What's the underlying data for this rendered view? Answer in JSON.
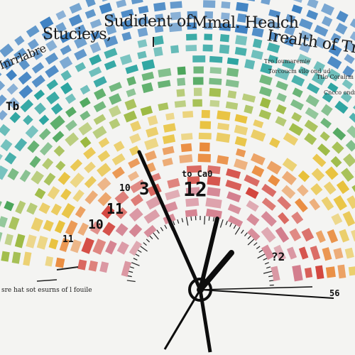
{
  "title": {
    "left": "Stucieys,",
    "middle": "Sudident of",
    "right": "Mmal. Healch",
    "right2": "Irealth of Treac",
    "curved_left": "Inrrlabre"
  },
  "labels": {
    "right_top1": "Tro loumaremie",
    "right_top2": "Torcoucm vilo ond ud",
    "right_top3": "Ttlo Coralrm oo",
    "right_top4": "Cncco ondno",
    "left_partial": "Tb",
    "bottom_caption": "sre hat sot esurns of l fouile",
    "clock_text": "to Ca0",
    "right_num": "56",
    "right_num2": "?2"
  },
  "dial_numbers": [
    "11",
    "11",
    "10",
    "10",
    "3",
    "12"
  ],
  "colors": {
    "blue": "#3f82c2",
    "teal": "#2ba4a0",
    "green": "#4aa55a",
    "olive": "#9ab83e",
    "yellow": "#e8c13a",
    "orange": "#e9893a",
    "red": "#d2423a",
    "pink": "#d27a8a",
    "hand": "#0d0d0d"
  },
  "icons": [
    "clock-hands-icon"
  ]
}
